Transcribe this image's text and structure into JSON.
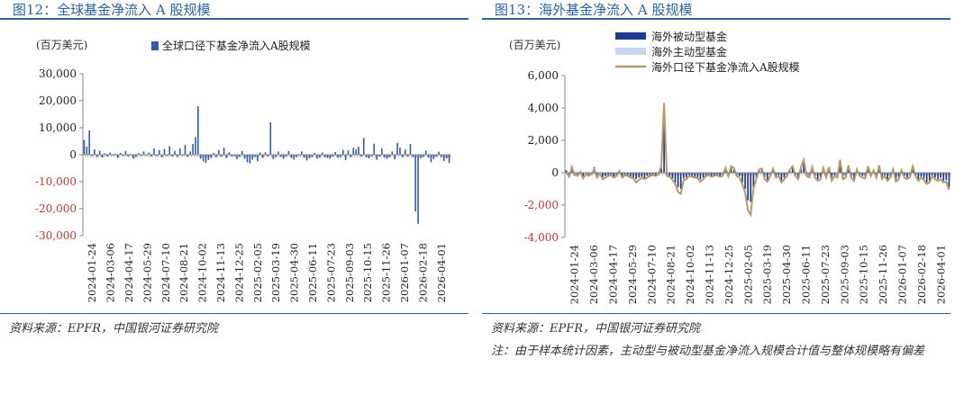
{
  "figures": [
    {
      "title": "图12：全球基金净流入 A 股规模",
      "unit": "(百万美元)",
      "source": "资料来源：EPFR，中国银河证券研究院"
    },
    {
      "title": "图13：海外基金净流入 A 股规模",
      "unit": "(百万美元)",
      "source": "资料来源：EPFR，中国银河证券研究院",
      "note": "注：由于样本统计因素，主动型与被动型基金净流入规模合计值与整体规模略有偏差"
    }
  ],
  "colors": {
    "title_blue": "#2b64a0",
    "bar_blue": "#2e5ca8",
    "passive_navy": "#1f3a8f",
    "active_light": "#c9d6ef",
    "total_gold": "#b89a6a",
    "axis_red": "#c0392b"
  },
  "chart_data": [
    {
      "type": "bar",
      "title": "全球基金净流入 A 股规模",
      "ylabel": "(百万美元)",
      "ylim": [
        -30000,
        30000
      ],
      "yticks": [
        30000,
        20000,
        10000,
        0,
        -10000,
        -20000,
        -30000
      ],
      "ytick_labels": [
        "30,000",
        "20,000",
        "10,000",
        "0",
        "-10,000",
        "-20,000",
        "-30,000"
      ],
      "legend": "top-center",
      "xtick_labels": [
        "2024-01-24",
        "2024-03-06",
        "2024-04-17",
        "2024-05-29",
        "2024-07-10",
        "2024-08-21",
        "2024-10-02",
        "2024-11-13",
        "2024-12-25",
        "2025-02-05",
        "2025-03-19",
        "2025-04-30",
        "2025-06-11",
        "2025-07-23",
        "2025-09-03",
        "2025-10-15",
        "2025-11-26",
        "2026-01-07",
        "2026-02-18",
        "2026-04-01"
      ],
      "series": [
        {
          "name": "全球口径下基金净流入A股规模",
          "values": [
            5500,
            3000,
            9000,
            -500,
            2000,
            -800,
            1500,
            -1000,
            500,
            -600,
            800,
            -300,
            400,
            -1200,
            700,
            -400,
            1400,
            -600,
            300,
            -1500,
            -900,
            600,
            -400,
            1200,
            -300,
            800,
            -700,
            2300,
            -500,
            1700,
            -900,
            2100,
            -400,
            3200,
            -600,
            1400,
            -800,
            2400,
            -300,
            3600,
            -700,
            1200,
            4000,
            6500,
            18000,
            -1500,
            -2500,
            -3000,
            -2000,
            -1200,
            600,
            -900,
            1800,
            -700,
            2600,
            -1200,
            900,
            -600,
            -500,
            -1600,
            -900,
            1400,
            -1500,
            -2800,
            -3200,
            -1800,
            -900,
            -2400,
            800,
            -1200,
            900,
            -600,
            12000,
            -1600,
            -900,
            1200,
            -800,
            -1500,
            -600,
            1400,
            -1200,
            -1800,
            -900,
            -400,
            1200,
            -1100,
            -2100,
            -1300,
            -900,
            600,
            -1500,
            -1100,
            800,
            -900,
            -1200,
            -1500,
            -700,
            1000,
            -1100,
            -900,
            1800,
            -2000,
            1600,
            -900,
            2600,
            2000,
            2900,
            -700,
            6200,
            -900,
            -1300,
            -600,
            4100,
            -1900,
            -700,
            2400,
            -1100,
            -1500,
            -900,
            1200,
            -1800,
            4400,
            2600,
            -900,
            1900,
            -700,
            4000,
            -900,
            -21000,
            -25600,
            -1300,
            -900,
            1500,
            -1100,
            -2800,
            -1600,
            -700,
            1100,
            -900,
            -2400,
            -1400,
            -3100
          ]
        }
      ]
    },
    {
      "type": "bar",
      "title": "海外基金净流入 A 股规模",
      "ylabel": "(百万美元)",
      "ylim": [
        -4000,
        6000
      ],
      "yticks": [
        6000,
        4000,
        2000,
        0,
        -2000,
        -4000
      ],
      "ytick_labels": [
        "6,000",
        "4,000",
        "2,000",
        "0",
        "-2,000",
        "-4,000"
      ],
      "legend": "top-center",
      "xtick_labels": [
        "2024-01-24",
        "2024-03-06",
        "2024-04-17",
        "2024-05-29",
        "2024-07-10",
        "2024-08-21",
        "2024-10-02",
        "2024-11-13",
        "2024-12-25",
        "2025-02-05",
        "2025-03-19",
        "2025-04-30",
        "2025-06-11",
        "2025-07-23",
        "2025-09-03",
        "2025-10-15",
        "2025-11-26",
        "2026-01-07",
        "2026-02-18",
        "2026-04-01"
      ],
      "series": [
        {
          "name": "海外被动型基金",
          "values": [
            150,
            -200,
            200,
            -150,
            -100,
            50,
            -200,
            -150,
            -100,
            -50,
            350,
            -250,
            -100,
            -300,
            -200,
            -150,
            -100,
            -250,
            -150,
            50,
            -200,
            -100,
            -150,
            -250,
            -300,
            -400,
            -300,
            -250,
            -350,
            -200,
            -150,
            -100,
            -150,
            -50,
            300,
            3200,
            -150,
            -200,
            -350,
            -600,
            -900,
            -1000,
            -350,
            -300,
            -150,
            -200,
            -250,
            -300,
            -400,
            -300,
            -150,
            -100,
            -200,
            -150,
            -100,
            -200,
            -150,
            200,
            -150,
            300,
            200,
            -200,
            -200,
            -600,
            -1000,
            -1700,
            -1800,
            -900,
            -300,
            150,
            200,
            -300,
            -450,
            -100,
            200,
            -250,
            -150,
            -500,
            -300,
            -150,
            150,
            300,
            -150,
            -300,
            250,
            650,
            -150,
            -200,
            250,
            -250,
            -400,
            -300,
            200,
            -250,
            250,
            -400,
            -150,
            -200,
            600,
            -300,
            -200,
            350,
            -250,
            -400,
            150,
            -150,
            -200,
            -250,
            300,
            -150,
            100,
            -200,
            350,
            -300,
            -150,
            -400,
            -250,
            150,
            -450,
            -300,
            100,
            -200,
            -300,
            -150,
            300,
            -150,
            -400,
            -250,
            -350,
            -600,
            -500,
            -150,
            -300,
            -400,
            -300,
            -500,
            -450,
            -900
          ]
        },
        {
          "name": "海外主动型基金",
          "values": [
            -100,
            -50,
            -100,
            -60,
            -80,
            -40,
            -90,
            -70,
            -60,
            -80,
            -100,
            -80,
            -120,
            -70,
            -90,
            -60,
            -80,
            -100,
            -60,
            -50,
            -90,
            -70,
            -60,
            -80,
            -110,
            -150,
            -120,
            -90,
            -100,
            -80,
            -60,
            -90,
            -70,
            -80,
            -50,
            -100,
            -150,
            -120,
            -150,
            -180,
            -200,
            -150,
            -100,
            -120,
            -80,
            -90,
            -100,
            -120,
            -150,
            -140,
            -100,
            -80,
            -90,
            -70,
            -100,
            -80,
            -60,
            -50,
            -70,
            -60,
            -50,
            -80,
            -90,
            -140,
            -200,
            -220,
            -200,
            -160,
            -90,
            -60,
            -50,
            -90,
            -100,
            -80,
            -60,
            -70,
            -90,
            -120,
            -100,
            -80,
            -60,
            -50,
            -70,
            -90,
            -60,
            -50,
            -80,
            -70,
            -60,
            -80,
            -100,
            -90,
            -60,
            -80,
            -70,
            -100,
            -90,
            -80,
            -60,
            -70,
            -80,
            -60,
            -90,
            -100,
            -60,
            -70,
            -80,
            -90,
            -60,
            -80,
            -50,
            -70,
            -60,
            -80,
            -70,
            -100,
            -90,
            -60,
            -100,
            -80,
            -60,
            -80,
            -90,
            -70,
            -60,
            -80,
            -100,
            -90,
            -110,
            -120,
            -100,
            -80,
            -90,
            -110,
            -100,
            -120,
            -110,
            -150
          ]
        },
        {
          "name": "海外口径下基金净流入A股规模",
          "values": [
            50,
            -250,
            350,
            -150,
            -200,
            50,
            -350,
            -100,
            -200,
            -100,
            200,
            -300,
            -50,
            -400,
            -300,
            -200,
            -150,
            -300,
            -200,
            100,
            -300,
            -150,
            -200,
            -300,
            -350,
            -600,
            -450,
            -300,
            -400,
            -300,
            -200,
            -150,
            -200,
            -100,
            400,
            4300,
            -200,
            -250,
            -450,
            -700,
            -1200,
            -1300,
            -450,
            -400,
            -200,
            -250,
            -300,
            -350,
            -550,
            -400,
            -200,
            -150,
            -250,
            -200,
            -150,
            -250,
            -200,
            300,
            -200,
            400,
            300,
            -200,
            -300,
            -700,
            -1200,
            -2300,
            -2600,
            -1000,
            -400,
            200,
            250,
            -400,
            -550,
            -200,
            250,
            -300,
            -200,
            -600,
            -400,
            -200,
            200,
            400,
            -200,
            -400,
            350,
            800,
            -200,
            -300,
            350,
            -300,
            -500,
            -400,
            300,
            -300,
            350,
            -500,
            -200,
            -300,
            800,
            -400,
            -300,
            450,
            -300,
            -500,
            200,
            -200,
            -300,
            -350,
            400,
            -200,
            150,
            -300,
            450,
            -400,
            -200,
            -500,
            -300,
            200,
            -550,
            -400,
            150,
            -300,
            -400,
            -250,
            400,
            -200,
            -500,
            -300,
            -450,
            -700,
            -600,
            -200,
            -400,
            -500,
            -400,
            -600,
            -550,
            -1050
          ]
        }
      ],
      "note": "注：由于样本统计因素，主动型与被动型基金净流入规模合计值与整体规模略有偏差"
    }
  ]
}
